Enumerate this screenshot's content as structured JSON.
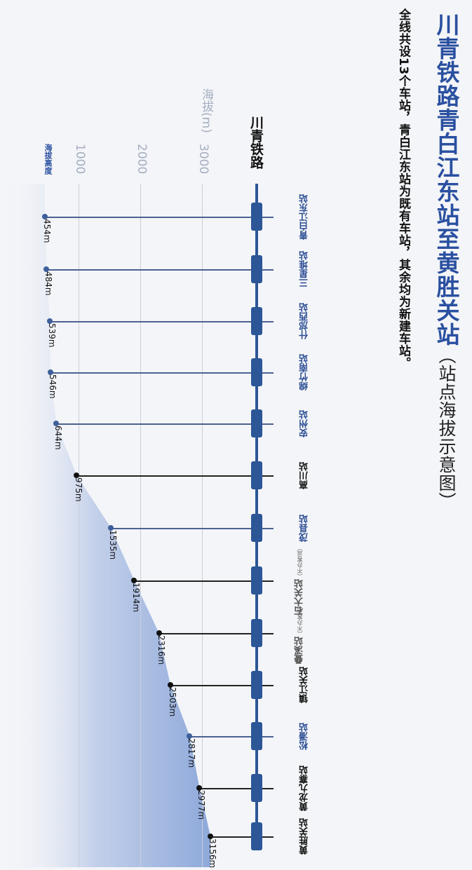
{
  "title": "川青铁路青白江东站至黄胜关站",
  "title_suffix": "（站点海拔示意图）",
  "subtitle": "全线共设13个车站，青白江东站为既有车站，其余均为新建车站。",
  "line_label": "川青铁路",
  "axis": {
    "title": "海拔(m)",
    "ticks": [
      "1000",
      "2000",
      "3000"
    ],
    "legend_label": "海拔高度"
  },
  "colors": {
    "accent": "#2a50a0",
    "track": "#2c5696",
    "area_fill": "#8ea9da",
    "grid": "#c9ced8"
  },
  "stations": [
    {
      "name": "青白江东站",
      "note": "",
      "elevation": "454m",
      "style": "blue"
    },
    {
      "name": "三星堆站",
      "note": "",
      "elevation": "484m",
      "style": "blue"
    },
    {
      "name": "什邡西站",
      "note": "",
      "elevation": "539m",
      "style": "blue"
    },
    {
      "name": "绵竹南站",
      "note": "",
      "elevation": "546m",
      "style": "blue"
    },
    {
      "name": "安州站",
      "note": "",
      "elevation": "644m",
      "style": "blue"
    },
    {
      "name": "高川站",
      "note": "",
      "elevation": "975m",
      "style": "black"
    },
    {
      "name": "茂县站",
      "note": "",
      "elevation": "1535m",
      "style": "blue"
    },
    {
      "name": "石大关站",
      "note": "（不办客运）",
      "elevation": "1914m",
      "style": "gray"
    },
    {
      "name": "叠溪站",
      "note": "（不办客运）",
      "elevation": "2316m",
      "style": "gray"
    },
    {
      "name": "镇江关站",
      "note": "",
      "elevation": "2503m",
      "style": "black"
    },
    {
      "name": "松潘站",
      "note": "",
      "elevation": "2817m",
      "style": "blue"
    },
    {
      "name": "黄龙九寨站",
      "note": "",
      "elevation": "2977m",
      "style": "black"
    },
    {
      "name": "黄胜关站",
      "note": "",
      "elevation": "3156m",
      "style": "black"
    }
  ],
  "chart_data": {
    "type": "area",
    "title": "川青铁路青白江东站至黄胜关站（站点海拔示意图）",
    "subtitle": "全线共设13个车站，青白江东站为既有车站，其余均为新建车站。",
    "orientation": "rotated-90",
    "xlabel": "川青铁路",
    "ylabel": "海拔(m)",
    "categories": [
      "青白江东站",
      "三星堆站",
      "什邡西站",
      "绵竹南站",
      "安州站",
      "高川站",
      "茂县站",
      "石大关站",
      "叠溪站",
      "镇江关站",
      "松潘站",
      "黄龙九寨站",
      "黄胜关站"
    ],
    "series": [
      {
        "name": "海拔高度",
        "values": [
          454,
          484,
          539,
          546,
          644,
          975,
          1535,
          1914,
          2316,
          2503,
          2817,
          2977,
          3156
        ]
      }
    ],
    "annotations": [
      "石大关站（不办客运）",
      "叠溪站（不办客运）"
    ],
    "y_ticks": [
      1000,
      2000,
      3000
    ],
    "ylim": [
      0,
      3200
    ],
    "grid": true
  }
}
